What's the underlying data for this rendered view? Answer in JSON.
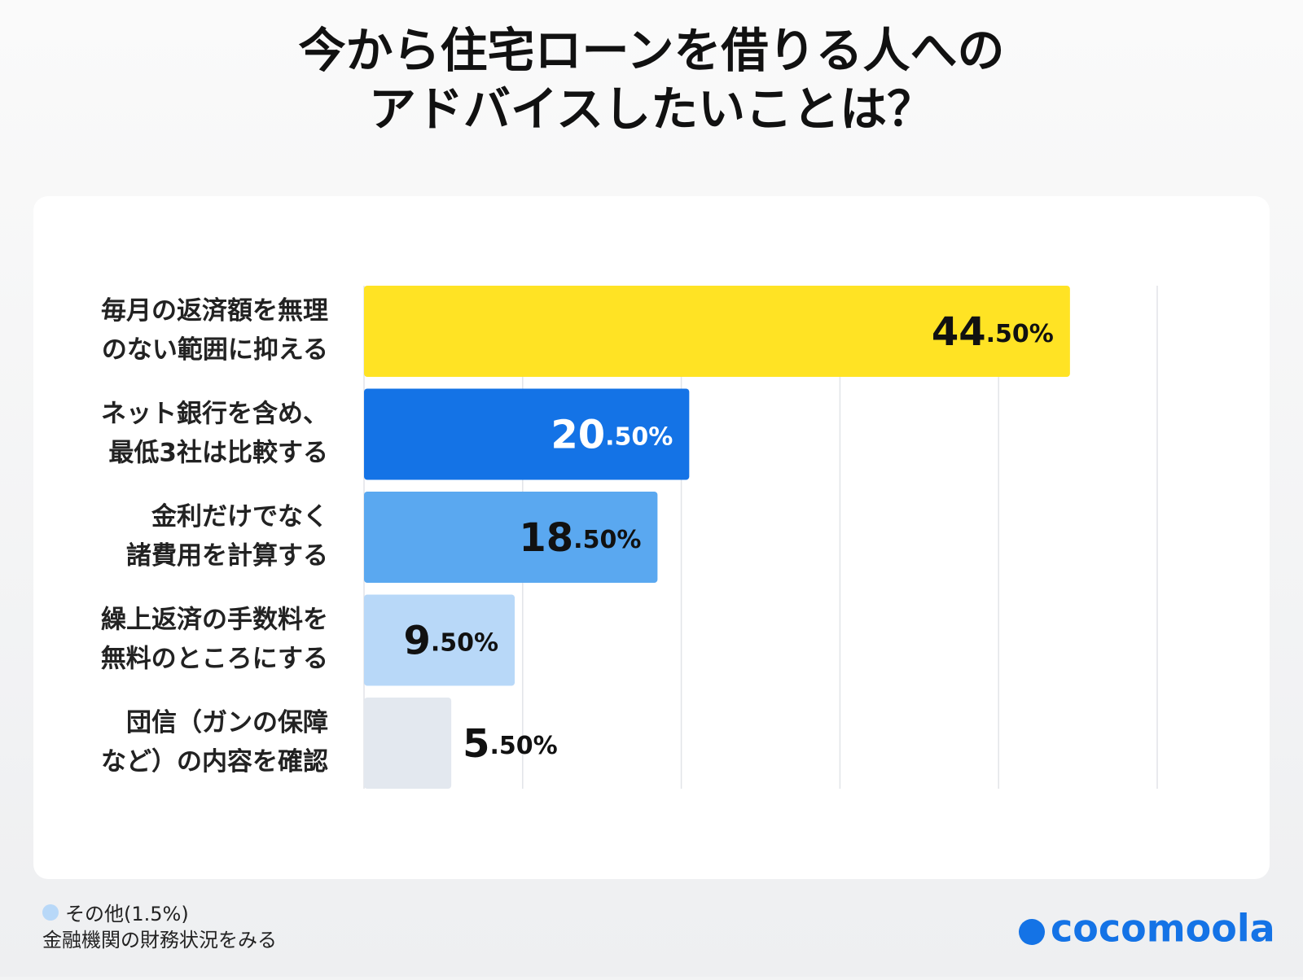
{
  "chart_data": {
    "type": "barh",
    "title": "今から住宅ローンを借りる人への\nアドバイスしたいことは？",
    "categories": [
      "毎月の返済額を無理\nのない範囲に抑える",
      "ネット銀行を含め、\n最低3社は比較する",
      "金利だけでなく\n諸費用を計算する",
      "繰上返済の手数料を\n無料のところにする",
      "団信（ガンの保障\nなど）の内容を確認"
    ],
    "values": [
      44.5,
      20.5,
      18.5,
      9.5,
      5.5
    ],
    "value_labels": [
      "44.50%",
      "20.50%",
      "18.50%",
      "9.50%",
      "5.50%"
    ],
    "colors": [
      "#ffe324",
      "#1473e6",
      "#5aa8f0",
      "#b8d8f8",
      "#e3e8ef"
    ],
    "value_label_colors": [
      "#111111",
      "#ffffff",
      "#111111",
      "#111111",
      "#111111"
    ],
    "xlim": [
      0,
      50
    ],
    "xticks": [
      0,
      10,
      20,
      30,
      40,
      50
    ],
    "grid": true
  },
  "footer": {
    "note": [
      "その他(1.5%)",
      "金融機関の財務状況をみる"
    ],
    "logo": "cocomoola"
  }
}
